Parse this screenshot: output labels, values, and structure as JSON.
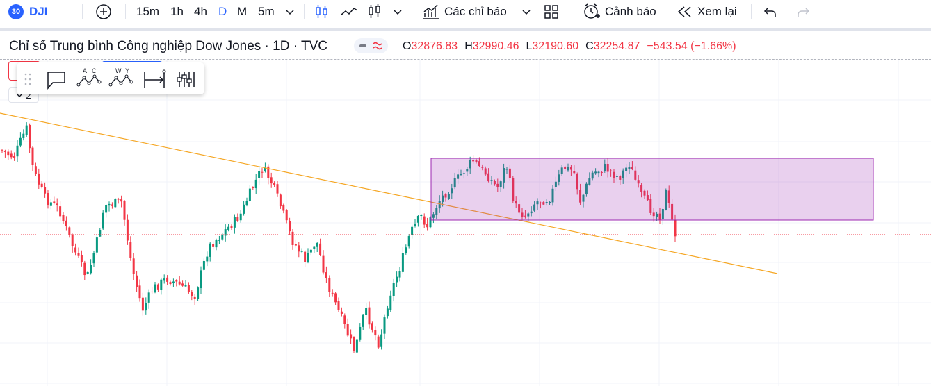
{
  "symbol": {
    "badge": "30",
    "ticker": "DJI"
  },
  "toolbar": {
    "intervals": [
      "15m",
      "1h",
      "4h",
      "D",
      "M",
      "5m"
    ],
    "active_interval": "D",
    "indicators_label": "Các chỉ báo",
    "alerts_label": "Cảnh báo",
    "replay_label": "Xem lại"
  },
  "legend": {
    "title": "Chỉ số Trung bình Công nghiệp Dow Jones · 1D · TVC",
    "open_label": "O",
    "open": "32876.83",
    "high_label": "H",
    "high": "32990.46",
    "low_label": "L",
    "low": "32190.60",
    "close_label": "C",
    "close": "32254.87",
    "change": "−543.54 (−1.66%)",
    "collapse_count": "2"
  },
  "colors": {
    "up": "#089981",
    "down": "#f23645",
    "trendline": "#f5a623",
    "box_fill": "#e1c3ec",
    "box_border": "#9c27b0",
    "accent": "#2962ff"
  }
}
